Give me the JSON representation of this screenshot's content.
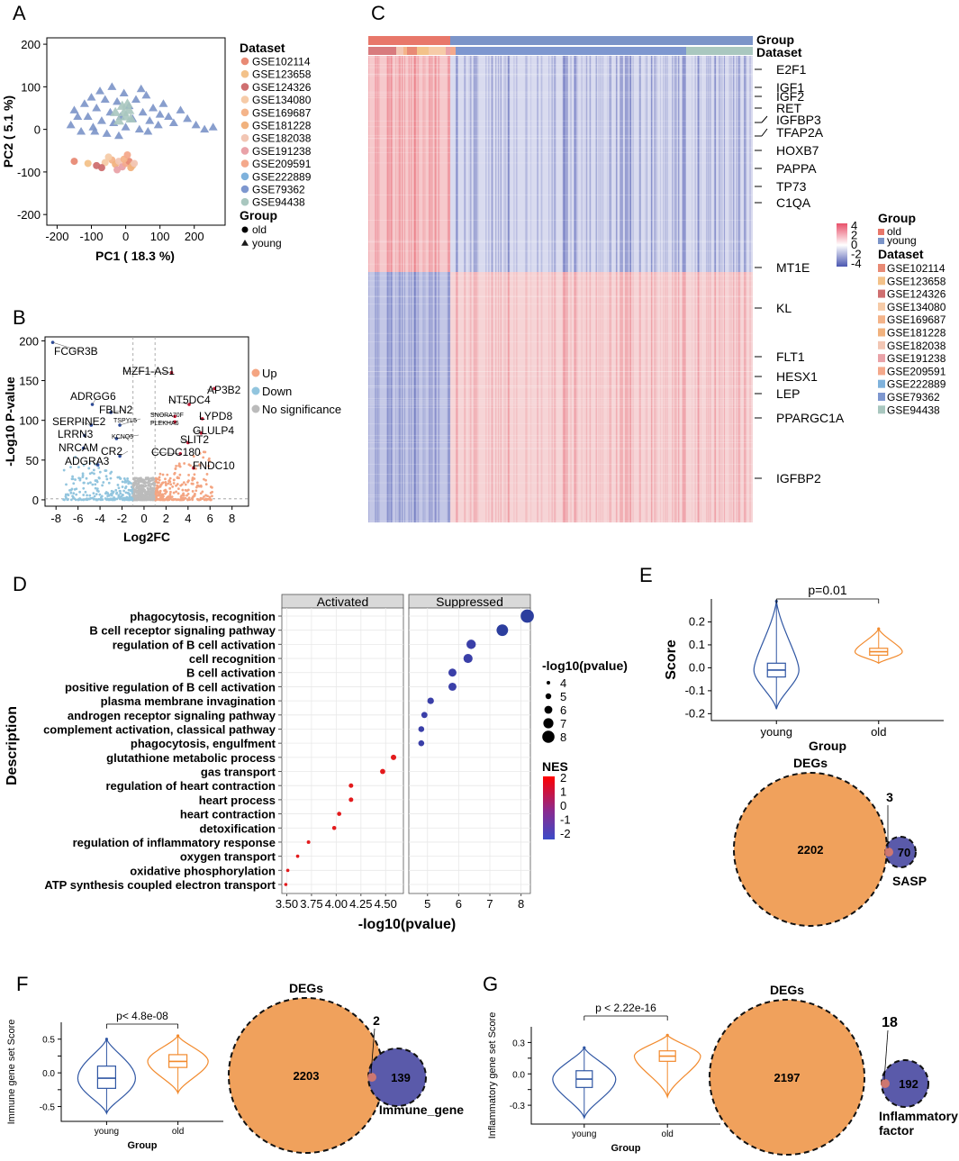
{
  "colors": {
    "old": "#e8776a",
    "young": "#7b94c8",
    "up": "#f4a582",
    "down": "#92c5de",
    "nosig": "#bbbbbb",
    "violin_young": "#2f56a3",
    "violin_old": "#f28a2d",
    "venn_big": "#f0a15c",
    "venn_small": "#5a5aaa",
    "heat_hi": "#e86a76",
    "heat_lo": "#4a56b0",
    "facet_bg": "#d9d9d9"
  },
  "chart_data": [
    {
      "id": "A",
      "panel_label": "A",
      "type": "scatter",
      "xlabel": "PC1 ( 18.3 %)",
      "ylabel": "PC2 ( 5.1 %)",
      "xlim": [
        -230,
        290
      ],
      "ylim": [
        -225,
        215
      ],
      "xticks": [
        "-200",
        "-100",
        "0",
        "100",
        "200"
      ],
      "xtick_values": [
        -200,
        -100,
        0,
        100,
        200
      ],
      "yticks": [
        "200",
        "100",
        "0",
        "-100",
        "-200"
      ],
      "ytick_values": [
        200,
        100,
        0,
        -100,
        -200
      ],
      "legend_dataset_title": "Dataset",
      "legend_group_title": "Group",
      "datasets": [
        {
          "name": "GSE102114",
          "color": "#e88a75"
        },
        {
          "name": "GSE123658",
          "color": "#f3c28a"
        },
        {
          "name": "GSE124326",
          "color": "#cf6f70"
        },
        {
          "name": "GSE134080",
          "color": "#f6cba8"
        },
        {
          "name": "GSE169687",
          "color": "#f4b48a"
        },
        {
          "name": "GSE181228",
          "color": "#f1b27e"
        },
        {
          "name": "GSE182038",
          "color": "#f2c6b4"
        },
        {
          "name": "GSE191238",
          "color": "#e9a2a8"
        },
        {
          "name": "GSE209591",
          "color": "#f4a98c"
        },
        {
          "name": "GSE222889",
          "color": "#7fb2dc"
        },
        {
          "name": "GSE79362",
          "color": "#7e97cf"
        },
        {
          "name": "GSE94438",
          "color": "#a9c7bf"
        }
      ],
      "groups": [
        {
          "name": "old",
          "shape": "circle"
        },
        {
          "name": "young",
          "shape": "triangle"
        }
      ],
      "old_points": [
        [
          -150,
          -75
        ],
        [
          -110,
          -80
        ],
        [
          -85,
          -85
        ],
        [
          -60,
          -78
        ],
        [
          -40,
          -72
        ],
        [
          -30,
          -82
        ],
        [
          -20,
          -75
        ],
        [
          -10,
          -88
        ],
        [
          0,
          -80
        ],
        [
          10,
          -75
        ],
        [
          20,
          -85
        ],
        [
          -70,
          -90
        ],
        [
          -50,
          -65
        ],
        [
          -5,
          -70
        ],
        [
          15,
          -90
        ],
        [
          25,
          -80
        ],
        [
          -25,
          -95
        ],
        [
          5,
          -60
        ]
      ],
      "young_points": [
        [
          -160,
          10
        ],
        [
          -150,
          45
        ],
        [
          -130,
          -5
        ],
        [
          -120,
          60
        ],
        [
          -110,
          30
        ],
        [
          -100,
          75
        ],
        [
          -95,
          5
        ],
        [
          -85,
          50
        ],
        [
          -75,
          90
        ],
        [
          -70,
          20
        ],
        [
          -60,
          70
        ],
        [
          -55,
          -10
        ],
        [
          -45,
          40
        ],
        [
          -40,
          100
        ],
        [
          -35,
          15
        ],
        [
          -25,
          65
        ],
        [
          -15,
          30
        ],
        [
          -5,
          85
        ],
        [
          0,
          5
        ],
        [
          10,
          55
        ],
        [
          20,
          25
        ],
        [
          30,
          70
        ],
        [
          40,
          0
        ],
        [
          50,
          40
        ],
        [
          60,
          80
        ],
        [
          70,
          20
        ],
        [
          80,
          50
        ],
        [
          95,
          10
        ],
        [
          110,
          60
        ],
        [
          125,
          30
        ],
        [
          140,
          15
        ],
        [
          160,
          45
        ],
        [
          180,
          25
        ],
        [
          205,
          10
        ],
        [
          230,
          0
        ],
        [
          255,
          5
        ],
        [
          -140,
          30
        ],
        [
          -90,
          -5
        ],
        [
          45,
          95
        ],
        [
          100,
          35
        ],
        [
          -20,
          -15
        ],
        [
          65,
          -5
        ]
      ],
      "center_points": [
        [
          -30,
          40
        ],
        [
          -10,
          55
        ],
        [
          0,
          30
        ],
        [
          10,
          45
        ],
        [
          -20,
          20
        ],
        [
          5,
          60
        ],
        [
          15,
          25
        ],
        [
          -5,
          40
        ]
      ]
    },
    {
      "id": "B",
      "panel_label": "B",
      "type": "scatter",
      "xlabel": "Log2FC",
      "ylabel": "-Log10 P-value",
      "xlim": [
        -9,
        9.5
      ],
      "ylim": [
        -8,
        205
      ],
      "xticks": [
        "-8",
        "-6",
        "-4",
        "-2",
        "0",
        "2",
        "4",
        "6",
        "8"
      ],
      "xtick_values": [
        -8,
        -6,
        -4,
        -2,
        0,
        2,
        4,
        6,
        8
      ],
      "yticks": [
        "200",
        "150",
        "100",
        "50",
        "0"
      ],
      "ytick_values": [
        200,
        150,
        100,
        50,
        0
      ],
      "thresholds": {
        "logfc": [
          -1,
          1
        ],
        "p": 1.3
      },
      "legend": [
        {
          "name": "Up",
          "key": "up"
        },
        {
          "name": "Down",
          "key": "down"
        },
        {
          "name": "No significance",
          "key": "nosig"
        }
      ],
      "genes": [
        {
          "name": "FCGR3B",
          "x": -8.3,
          "y": 198
        },
        {
          "name": "MZF1-AS1",
          "x": 2.5,
          "y": 160
        },
        {
          "name": "AP3B2",
          "x": 6.4,
          "y": 140
        },
        {
          "name": "NT5DC4",
          "x": 4.1,
          "y": 120
        },
        {
          "name": "ADRGG6",
          "x": -4.7,
          "y": 120
        },
        {
          "name": "FBLN2",
          "x": -3.0,
          "y": 110
        },
        {
          "name": "SNORA70F",
          "x": 2.8,
          "y": 105
        },
        {
          "name": "PLEKHA6",
          "x": 2.8,
          "y": 98
        },
        {
          "name": "LYPD8",
          "x": 5.3,
          "y": 102
        },
        {
          "name": "TSPYL5",
          "x": -2.2,
          "y": 94
        },
        {
          "name": "SERPINE2",
          "x": -4.8,
          "y": 94
        },
        {
          "name": "GLULP4",
          "x": 5.2,
          "y": 84
        },
        {
          "name": "LRRN3",
          "x": -5.4,
          "y": 81
        },
        {
          "name": "KCNQ5",
          "x": -2.5,
          "y": 77
        },
        {
          "name": "SLIT2",
          "x": 4.0,
          "y": 72
        },
        {
          "name": "NRCAM",
          "x": -5.5,
          "y": 65
        },
        {
          "name": "CCDC180",
          "x": 3.3,
          "y": 58
        },
        {
          "name": "CR2",
          "x": -2.2,
          "y": 55
        },
        {
          "name": "ADGRA3",
          "x": -4.2,
          "y": 44
        },
        {
          "name": "FNDC10",
          "x": 4.5,
          "y": 40
        }
      ]
    },
    {
      "id": "C",
      "panel_label": "C",
      "type": "heatmap",
      "annotation_labels": [
        "Group",
        "Dataset"
      ],
      "scale_ticks": [
        "4",
        "2",
        "0",
        "-2",
        "-4"
      ],
      "legend_group_title": "Group",
      "legend_dataset_title": "Dataset",
      "legend_groups": [
        "old",
        "young"
      ],
      "genes": [
        "E2F1",
        "IGF1",
        "IGF2",
        "RET",
        "IGFBP3",
        "TFAP2A",
        "HOXB7",
        "PAPPA",
        "TP73",
        "C1QA",
        "MT1E",
        "KL",
        "FLT1",
        "HESX1",
        "LEP",
        "PPARGC1A",
        "IGFBP2"
      ],
      "dataset_legend": [
        "GSE102114",
        "GSE123658",
        "GSE124326",
        "GSE134080",
        "GSE169687",
        "GSE181228",
        "GSE182038",
        "GSE191238",
        "GSE209591",
        "GSE222889",
        "GSE79362",
        "GSE94438"
      ]
    },
    {
      "id": "D",
      "panel_label": "D",
      "type": "scatter",
      "ylabel": "Description",
      "xlabel": "-log10(pvalue)",
      "facets": [
        "Activated",
        "Suppressed"
      ],
      "left_axis": {
        "xlim": [
          3.45,
          4.68
        ],
        "ticks": [
          "3.50",
          "3.75",
          "4.00",
          "4.25",
          "4.50"
        ],
        "tick_values": [
          3.5,
          3.75,
          4.0,
          4.25,
          4.5
        ]
      },
      "right_axis": {
        "xlim": [
          4.4,
          8.3
        ],
        "ticks": [
          "5",
          "6",
          "7",
          "8"
        ],
        "tick_values": [
          5,
          6,
          7,
          8
        ]
      },
      "size_legend_title": "-log10(pvalue)",
      "size_legend": [
        "4",
        "5",
        "6",
        "7",
        "8"
      ],
      "color_legend_title": "NES",
      "color_legend_ticks": [
        "2",
        "1",
        "0",
        "-1",
        "-2"
      ],
      "terms": [
        {
          "name": "phagocytosis, recognition",
          "facet": "Suppressed",
          "p": 8.2,
          "nes": -2.2
        },
        {
          "name": "B cell receptor signaling pathway",
          "facet": "Suppressed",
          "p": 7.4,
          "nes": -2.1
        },
        {
          "name": "regulation of B cell activation",
          "facet": "Suppressed",
          "p": 6.4,
          "nes": -2.0
        },
        {
          "name": "cell recognition",
          "facet": "Suppressed",
          "p": 6.3,
          "nes": -2.0
        },
        {
          "name": "B cell activation",
          "facet": "Suppressed",
          "p": 5.8,
          "nes": -2.0
        },
        {
          "name": "positive regulation of B cell activation",
          "facet": "Suppressed",
          "p": 5.8,
          "nes": -2.0
        },
        {
          "name": "plasma membrane invagination",
          "facet": "Suppressed",
          "p": 5.1,
          "nes": -1.9
        },
        {
          "name": "androgen receptor signaling pathway",
          "facet": "Suppressed",
          "p": 4.9,
          "nes": -1.9
        },
        {
          "name": "complement activation, classical pathway",
          "facet": "Suppressed",
          "p": 4.8,
          "nes": -1.9
        },
        {
          "name": "phagocytosis, engulfment",
          "facet": "Suppressed",
          "p": 4.8,
          "nes": -1.9
        },
        {
          "name": "glutathione metabolic process",
          "facet": "Activated",
          "p": 4.58,
          "nes": 2.0
        },
        {
          "name": "gas transport",
          "facet": "Activated",
          "p": 4.47,
          "nes": 2.0
        },
        {
          "name": "regulation of heart contraction",
          "facet": "Activated",
          "p": 4.15,
          "nes": 2.0
        },
        {
          "name": "heart process",
          "facet": "Activated",
          "p": 4.15,
          "nes": 2.0
        },
        {
          "name": "heart contraction",
          "facet": "Activated",
          "p": 4.03,
          "nes": 2.0
        },
        {
          "name": "detoxification",
          "facet": "Activated",
          "p": 3.98,
          "nes": 2.0
        },
        {
          "name": "regulation of inflammatory response",
          "facet": "Activated",
          "p": 3.72,
          "nes": 2.0
        },
        {
          "name": "oxygen transport",
          "facet": "Activated",
          "p": 3.61,
          "nes": 2.0
        },
        {
          "name": "oxidative phosphorylation",
          "facet": "Activated",
          "p": 3.51,
          "nes": 2.0
        },
        {
          "name": "ATP synthesis coupled electron transport",
          "facet": "Activated",
          "p": 3.49,
          "nes": 2.0
        }
      ]
    },
    {
      "id": "E",
      "panel_label": "E",
      "type": "violin",
      "ylabel": "Score",
      "xlabel": "Group",
      "categories": [
        "young",
        "old"
      ],
      "ylim": [
        -0.23,
        0.3
      ],
      "yticks": [
        "0.2",
        "0.1",
        "0.0",
        "-0.1",
        "-0.2"
      ],
      "ytick_values": [
        0.2,
        0.1,
        0.0,
        -0.1,
        -0.2
      ],
      "pvalue": "p=0.01",
      "stats": [
        {
          "group": "young",
          "min": -0.18,
          "q1": -0.04,
          "median": -0.01,
          "q3": 0.02,
          "max": 0.29
        },
        {
          "group": "old",
          "min": 0.02,
          "q1": 0.055,
          "median": 0.07,
          "q3": 0.085,
          "max": 0.17
        }
      ]
    },
    {
      "id": "E_venn",
      "type": "venn",
      "set1": "DEGs",
      "set2": "SASP",
      "only1": "2202",
      "overlap": "3",
      "only2": "70"
    },
    {
      "id": "F",
      "panel_label": "F",
      "type": "violin",
      "ylabel": "Immune gene set Score",
      "xlabel": "Group",
      "categories": [
        "young",
        "old"
      ],
      "ylim": [
        -0.72,
        0.75
      ],
      "yticks": [
        "0.5",
        "0.0",
        "-0.5"
      ],
      "ytick_values": [
        0.5,
        0.0,
        -0.5
      ],
      "extra_yticks": [
        0.25,
        -0.25
      ],
      "extra_ytick_labels": [
        "0.25",
        "-0.25"
      ],
      "pvalue": "p< 4.8e-08",
      "stats": [
        {
          "group": "young",
          "min": -0.6,
          "q1": -0.23,
          "median": -0.08,
          "q3": 0.1,
          "max": 0.5
        },
        {
          "group": "old",
          "min": -0.3,
          "q1": 0.08,
          "median": 0.17,
          "q3": 0.27,
          "max": 0.55
        }
      ]
    },
    {
      "id": "F_venn",
      "type": "venn",
      "set1": "DEGs",
      "set2": "Immune_gene",
      "only1": "2203",
      "overlap": "2",
      "only2": "139"
    },
    {
      "id": "G",
      "panel_label": "G",
      "type": "violin",
      "ylabel": "Inflammatory gene set Score",
      "xlabel": "Group",
      "categories": [
        "young",
        "old"
      ],
      "ylim": [
        -0.48,
        0.45
      ],
      "yticks": [
        "0.3",
        "0.0",
        "-0.3"
      ],
      "ytick_values": [
        0.3,
        0.0,
        -0.3
      ],
      "extra_yticks": [
        0.15,
        -0.15
      ],
      "extra_ytick_labels": [
        "0.15",
        "-0.15"
      ],
      "pvalue": "p < 2.22e-16",
      "stats": [
        {
          "group": "young",
          "min": -0.42,
          "q1": -0.13,
          "median": -0.05,
          "q3": 0.03,
          "max": 0.25
        },
        {
          "group": "old",
          "min": -0.22,
          "q1": 0.12,
          "median": 0.17,
          "q3": 0.22,
          "max": 0.37
        }
      ]
    },
    {
      "id": "G_venn",
      "type": "venn",
      "set1": "DEGs",
      "set2": "Inflammatory factor",
      "only1": "2197",
      "overlap": "18",
      "only2": "192"
    }
  ]
}
